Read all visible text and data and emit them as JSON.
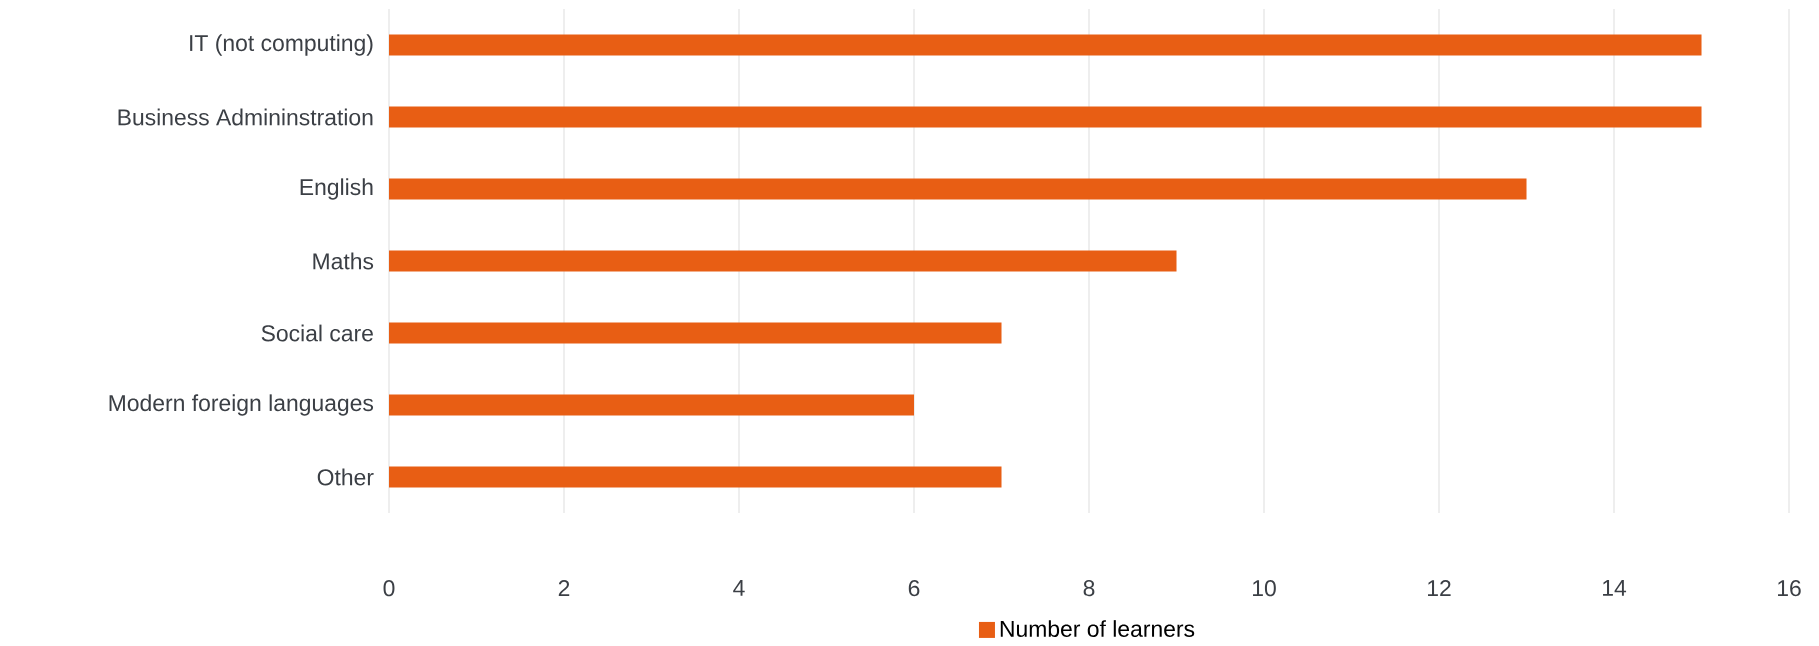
{
  "chart_data": {
    "type": "bar",
    "orientation": "horizontal",
    "categories": [
      "IT (not computing)",
      "Business Admininstration",
      "English",
      "Maths",
      "Social care",
      "Modern foreign languages",
      "Other"
    ],
    "series": [
      {
        "name": "Number of learners",
        "color": "#e85e14",
        "values": [
          15,
          15,
          13,
          9,
          7,
          6,
          7
        ]
      }
    ],
    "xlim": [
      0,
      16
    ],
    "xticks": [
      0,
      2,
      4,
      6,
      8,
      10,
      12,
      14,
      16
    ],
    "grid": "x",
    "legend": "bottom"
  }
}
